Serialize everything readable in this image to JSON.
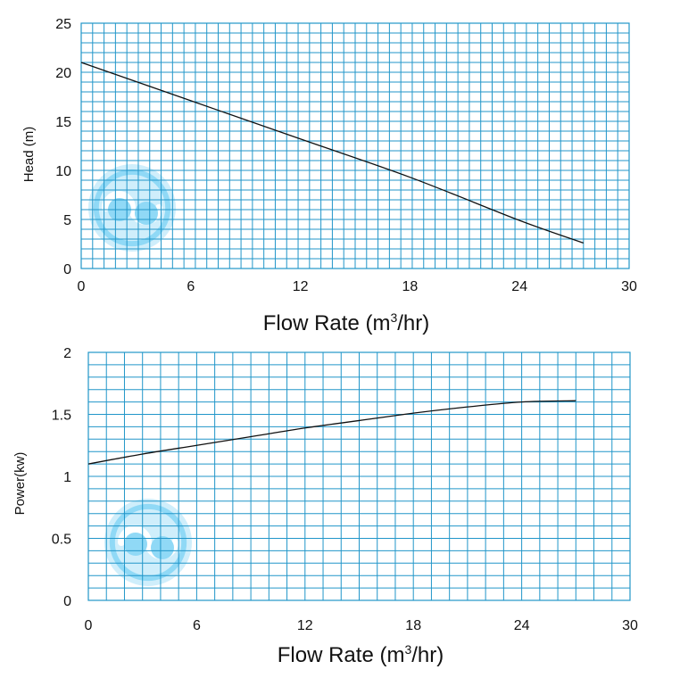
{
  "colors": {
    "grid": "#2196c9",
    "curve": "#111111",
    "logo": "#7dd3f5",
    "logo_light": "#c7ecfb"
  },
  "logo_icon": "pump-swirl-watermark-icon",
  "chart_data": [
    {
      "type": "line",
      "title": "",
      "xlabel": "Flow Rate (m",
      "xlabel_sup": "3",
      "xlabel_tail": "/hr)",
      "ylabel": "Head (m)",
      "xlim": [
        0,
        30
      ],
      "ylim": [
        0,
        25
      ],
      "xticks": [
        "0",
        "6",
        "12",
        "18",
        "24",
        "30"
      ],
      "yticks": [
        "0",
        "5",
        "10",
        "15",
        "20",
        "25"
      ],
      "grid": true,
      "series": [
        {
          "name": "Head",
          "x": [
            0,
            6,
            12,
            18,
            24,
            27.5
          ],
          "y": [
            21.0,
            17.1,
            13.2,
            9.3,
            4.9,
            2.6
          ]
        }
      ]
    },
    {
      "type": "line",
      "title": "",
      "xlabel": "Flow Rate (m",
      "xlabel_sup": "3",
      "xlabel_tail": "/hr)",
      "ylabel": "Power(kw)",
      "xlim": [
        0,
        30
      ],
      "ylim": [
        0,
        2
      ],
      "xticks": [
        "0",
        "6",
        "12",
        "18",
        "24",
        "30"
      ],
      "yticks": [
        "0",
        "0.5",
        "1",
        "1.5",
        "2"
      ],
      "grid": true,
      "series": [
        {
          "name": "Power",
          "x": [
            0,
            3,
            6,
            9,
            12,
            15,
            18,
            21,
            24,
            27
          ],
          "y": [
            1.1,
            1.18,
            1.25,
            1.32,
            1.39,
            1.45,
            1.51,
            1.56,
            1.6,
            1.61
          ]
        }
      ]
    }
  ]
}
